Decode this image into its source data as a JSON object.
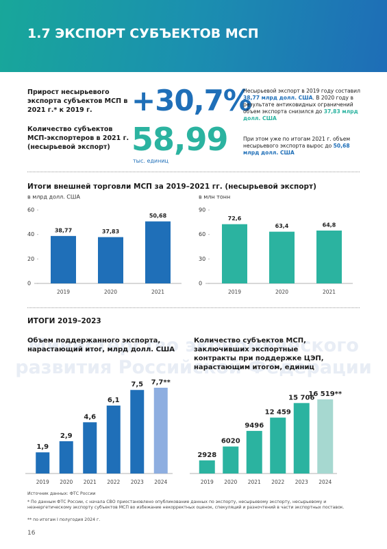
{
  "header": {
    "title": "1.7 ЭКСПОРТ СУБЪЕКТОВ МСП"
  },
  "stats": {
    "label1": "Прирост несырьевого экспорта субъектов МСП в 2021 г.* к 2019 г.",
    "value1": "+30,7%",
    "label2": "Количество субъектов МСП-экспортеров в 2021 г. (несырьевой экспорт)",
    "value2": "58,99",
    "unit2": "тыс. единиц",
    "paragraph1": [
      "Несырьевой экспорт в 2019 году составил ",
      "38,77 млрд долл. США",
      ". В 2020 году в результате антиковидных ограничений объем экспорта снизился до ",
      "37,83 млрд долл. США"
    ],
    "paragraph2": [
      "При этом уже по итогам 2021 г. объем несырьевого экспорта вырос до ",
      "50,68 млрд долл. США"
    ]
  },
  "watermark": "Министерство экономического развития Российской Федерации",
  "section1": "Итоги внешней торговли МСП за 2019–2021 гг. (несырьевой экспорт)",
  "section2": "ИТОГИ 2019–2023",
  "chart_data": [
    {
      "type": "bar",
      "y_label": "в млрд долл. США",
      "categories": [
        "2019",
        "2020",
        "2021"
      ],
      "values": [
        38.77,
        37.83,
        50.68
      ],
      "value_labels": [
        "38,77",
        "37,83",
        "50,68"
      ],
      "color": "#1f6fb8",
      "ylim": [
        0,
        60
      ],
      "yticks": [
        0,
        20,
        40,
        60
      ]
    },
    {
      "type": "bar",
      "y_label": "в млн тонн",
      "categories": [
        "2019",
        "2020",
        "2021"
      ],
      "values": [
        72.6,
        63.4,
        64.8
      ],
      "value_labels": [
        "72,6",
        "63,4",
        "64,8"
      ],
      "color": "#2bb3a0",
      "ylim": [
        0,
        90
      ],
      "yticks": [
        0,
        30,
        60,
        90
      ]
    },
    {
      "type": "bar",
      "title": "Объем поддержанного экспорта, нарастающий итог, млрд долл. США",
      "categories": [
        "2019",
        "2020",
        "2021",
        "2022",
        "2023",
        "2024"
      ],
      "values": [
        1.9,
        2.9,
        4.6,
        6.1,
        7.5,
        7.7
      ],
      "value_labels": [
        "1,9",
        "2,9",
        "4,6",
        "6,1",
        "7,5",
        "7,7**"
      ],
      "colors": [
        "#1f6fb8",
        "#1f6fb8",
        "#1f6fb8",
        "#1f6fb8",
        "#1f6fb8",
        "#8eaee0"
      ]
    },
    {
      "type": "bar",
      "title": "Количество субъектов МСП, заключивших экспортные контракты при поддержке ЦЭП, нарастающим итогом, единиц",
      "categories": [
        "2019",
        "2020",
        "2021",
        "2022",
        "2023",
        "2024"
      ],
      "values": [
        2928,
        6020,
        9496,
        12459,
        15706,
        16519
      ],
      "value_labels": [
        "2928",
        "6020",
        "9496",
        "12 459",
        "15 706",
        "16 519**"
      ],
      "colors": [
        "#2bb3a0",
        "#2bb3a0",
        "#2bb3a0",
        "#2bb3a0",
        "#2bb3a0",
        "#a6d8d0"
      ]
    }
  ],
  "footnotes": [
    "Источник данных: ФТС России",
    "* По данным ФТС России, с начала СВО приостановлено опубликование данных по экспорту, несырьевому экспорту, несырьевому и неэнергетическому экспорту субъектов МСП во избежание некорректных оценок, спекуляций и разночтений в части экспортных поставок.",
    "** по итогам I полугодия 2024 г."
  ],
  "page_number": "16"
}
